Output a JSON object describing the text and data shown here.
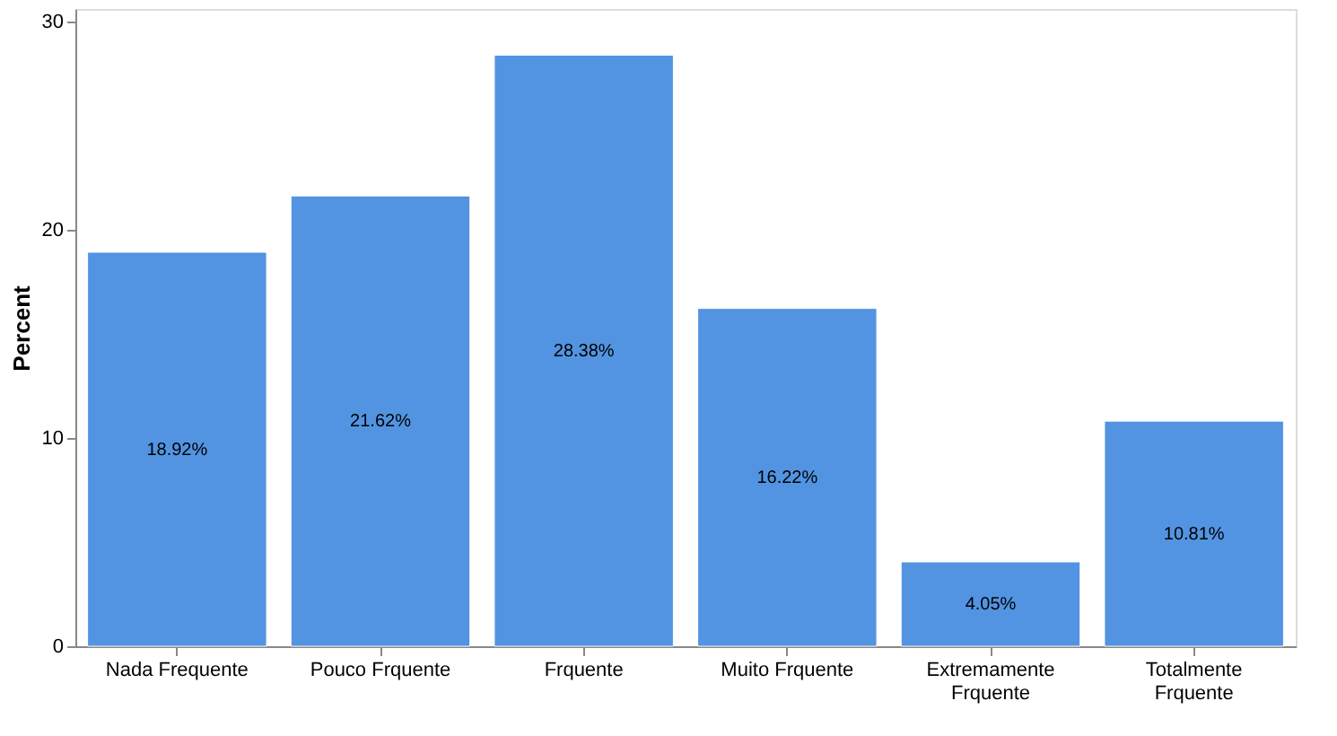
{
  "chart_data": {
    "type": "bar",
    "ylabel": "Percent",
    "categories": [
      "Nada Frequente",
      "Pouco Frquente",
      "Frquente",
      "Muito Frquente",
      "Extremamente Frquente",
      "Totalmente Frquente"
    ],
    "values": [
      18.92,
      21.62,
      28.38,
      16.22,
      4.05,
      10.81
    ],
    "value_labels": [
      "18.92%",
      "21.62%",
      "28.38%",
      "16.22%",
      "4.05%",
      "10.81%"
    ],
    "color": "#5294e2",
    "ylim": [
      0,
      30.6
    ],
    "yticks": [
      0,
      10,
      20,
      30
    ],
    "grid": false
  }
}
